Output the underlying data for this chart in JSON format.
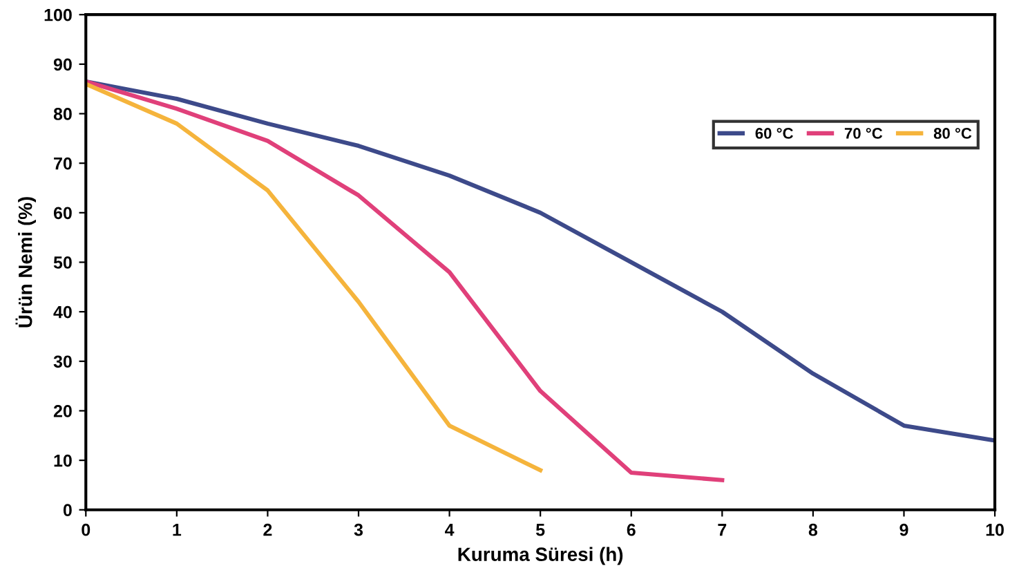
{
  "chart_data": {
    "type": "line",
    "xlabel": "Kuruma Süresi (h)",
    "ylabel": "Ürün Nemi (%)",
    "xlim": [
      0,
      10
    ],
    "xticks": [
      0,
      1,
      2,
      3,
      4,
      5,
      6,
      7,
      8,
      9,
      10
    ],
    "ylim": [
      0,
      100
    ],
    "yticks": [
      0,
      10,
      20,
      30,
      40,
      50,
      60,
      70,
      80,
      90,
      100
    ],
    "grid": false,
    "legend": "top right",
    "marker": "none",
    "line_style": "solid",
    "series": [
      {
        "name": "60 °C",
        "color": "#3d4a8a",
        "x": [
          0,
          1,
          2,
          3,
          4,
          5,
          6,
          7,
          8,
          9,
          10
        ],
        "values": [
          86.5,
          83,
          78,
          73.5,
          67.5,
          60,
          50,
          40,
          27.5,
          17,
          14
        ]
      },
      {
        "name": "70 °C",
        "color": "#e0407a",
        "x": [
          0,
          1,
          2,
          3,
          4,
          5,
          6,
          7
        ],
        "values": [
          86.5,
          81,
          74.5,
          63.5,
          48,
          24,
          7.5,
          6
        ]
      },
      {
        "name": "80 °C",
        "color": "#f5b43c",
        "x": [
          0,
          1,
          2,
          3,
          4,
          5
        ],
        "values": [
          86,
          78,
          64.5,
          42,
          17,
          8
        ]
      }
    ]
  }
}
